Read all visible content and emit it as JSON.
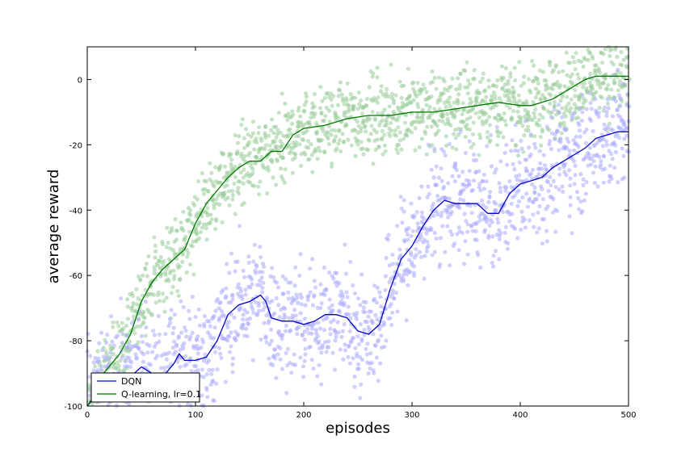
{
  "chart_data": {
    "type": "line",
    "title": "",
    "xlabel": "episodes",
    "ylabel": "average reward",
    "xlim": [
      0,
      500
    ],
    "ylim": [
      -100,
      10
    ],
    "xticks": [
      "0",
      "100",
      "200",
      "300",
      "400",
      "500"
    ],
    "yticks": [
      "-100",
      "-80",
      "-60",
      "-40",
      "-20",
      "0"
    ],
    "xtick_values": [
      0,
      100,
      200,
      300,
      400,
      500
    ],
    "ytick_values": [
      -100,
      -80,
      -60,
      -40,
      -20,
      0
    ],
    "grid": false,
    "legend_position": "lower-left",
    "series": [
      {
        "name": "DQN",
        "color": "#0000cc",
        "scatter_color": "#aaaaff",
        "x": [
          0,
          5,
          10,
          20,
          30,
          40,
          50,
          60,
          70,
          80,
          85,
          90,
          100,
          110,
          120,
          130,
          140,
          150,
          160,
          165,
          170,
          180,
          190,
          200,
          210,
          220,
          230,
          240,
          250,
          260,
          270,
          280,
          290,
          300,
          310,
          320,
          330,
          340,
          350,
          360,
          370,
          380,
          390,
          400,
          410,
          420,
          430,
          440,
          450,
          460,
          470,
          480,
          490,
          500
        ],
        "y": [
          -100,
          -98,
          -96,
          -93,
          -92,
          -91,
          -88,
          -90,
          -91,
          -87,
          -84,
          -86,
          -86,
          -85,
          -80,
          -72,
          -69,
          -68,
          -66,
          -68,
          -73,
          -74,
          -74,
          -75,
          -74,
          -72,
          -72,
          -73,
          -77,
          -78,
          -75,
          -64,
          -55,
          -51,
          -45,
          -40,
          -37,
          -38,
          -38,
          -38,
          -41,
          -41,
          -35,
          -32,
          -31,
          -30,
          -27,
          -25,
          -23,
          -21,
          -18,
          -17,
          -16,
          -16
        ]
      },
      {
        "name": "Q-learning, lr=0.1",
        "color": "#007700",
        "scatter_color": "#99cc99",
        "x": [
          0,
          10,
          15,
          20,
          25,
          30,
          40,
          50,
          60,
          70,
          80,
          90,
          100,
          110,
          120,
          130,
          140,
          150,
          160,
          170,
          180,
          190,
          200,
          220,
          240,
          260,
          280,
          300,
          320,
          340,
          360,
          380,
          400,
          410,
          420,
          430,
          440,
          450,
          460,
          470,
          480,
          490,
          500
        ],
        "y": [
          -100,
          -95,
          -90,
          -88,
          -86,
          -84,
          -78,
          -68,
          -62,
          -58,
          -55,
          -52,
          -44,
          -38,
          -34,
          -30,
          -27,
          -25,
          -25,
          -22,
          -22,
          -17,
          -15,
          -14,
          -12,
          -11,
          -11,
          -10,
          -10,
          -9,
          -8,
          -7,
          -8,
          -8,
          -7,
          -6,
          -4,
          -2,
          0,
          1,
          1,
          1,
          1
        ]
      }
    ]
  }
}
